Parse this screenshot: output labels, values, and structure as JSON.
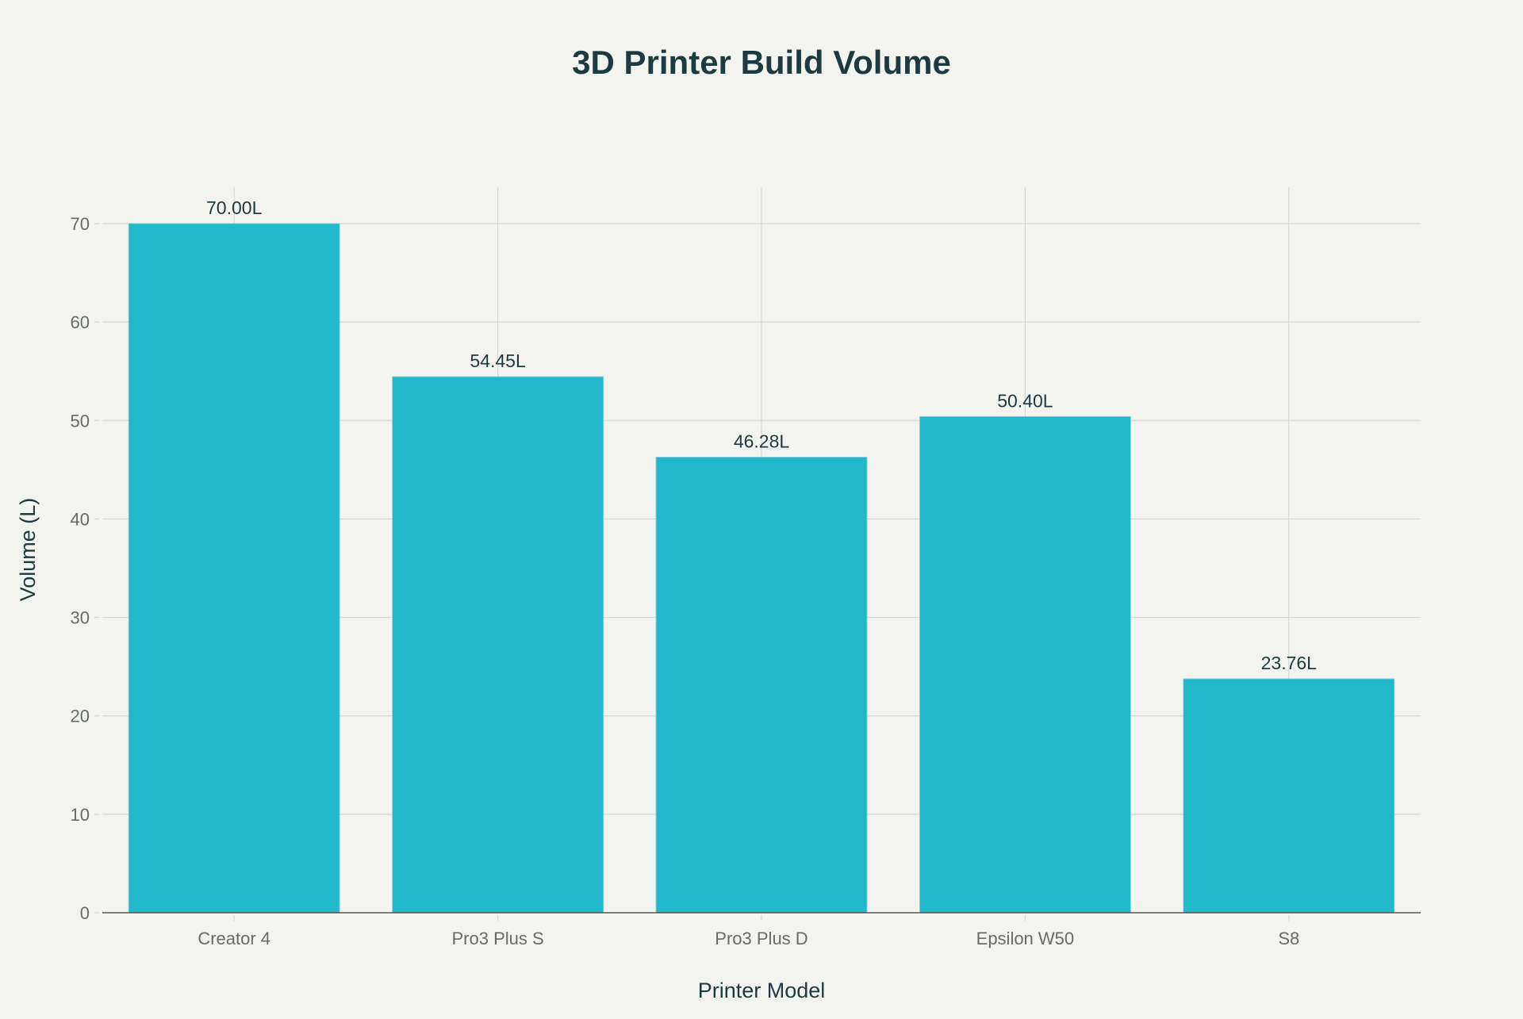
{
  "chart_data": {
    "type": "bar",
    "title": "3D Printer Build Volume",
    "xlabel": "Printer Model",
    "ylabel": "Volume (L)",
    "categories": [
      "Creator 4",
      "Pro3 Plus S",
      "Pro3 Plus D",
      "Epsilon W50",
      "S8"
    ],
    "values": [
      70.0,
      54.45,
      46.28,
      50.4,
      23.76
    ],
    "data_labels": [
      "70.00L",
      "54.45L",
      "46.28L",
      "50.40L",
      "23.76L"
    ],
    "ylim": [
      0,
      73.6
    ],
    "yticks": [
      0,
      10,
      20,
      30,
      40,
      50,
      60,
      70
    ],
    "grid": true,
    "colors": {
      "bar": "#21b8cc",
      "title": "#1c3a40",
      "tick": "#666b6b",
      "grid": "#d6d8d4",
      "axis": "#5a5650"
    }
  }
}
